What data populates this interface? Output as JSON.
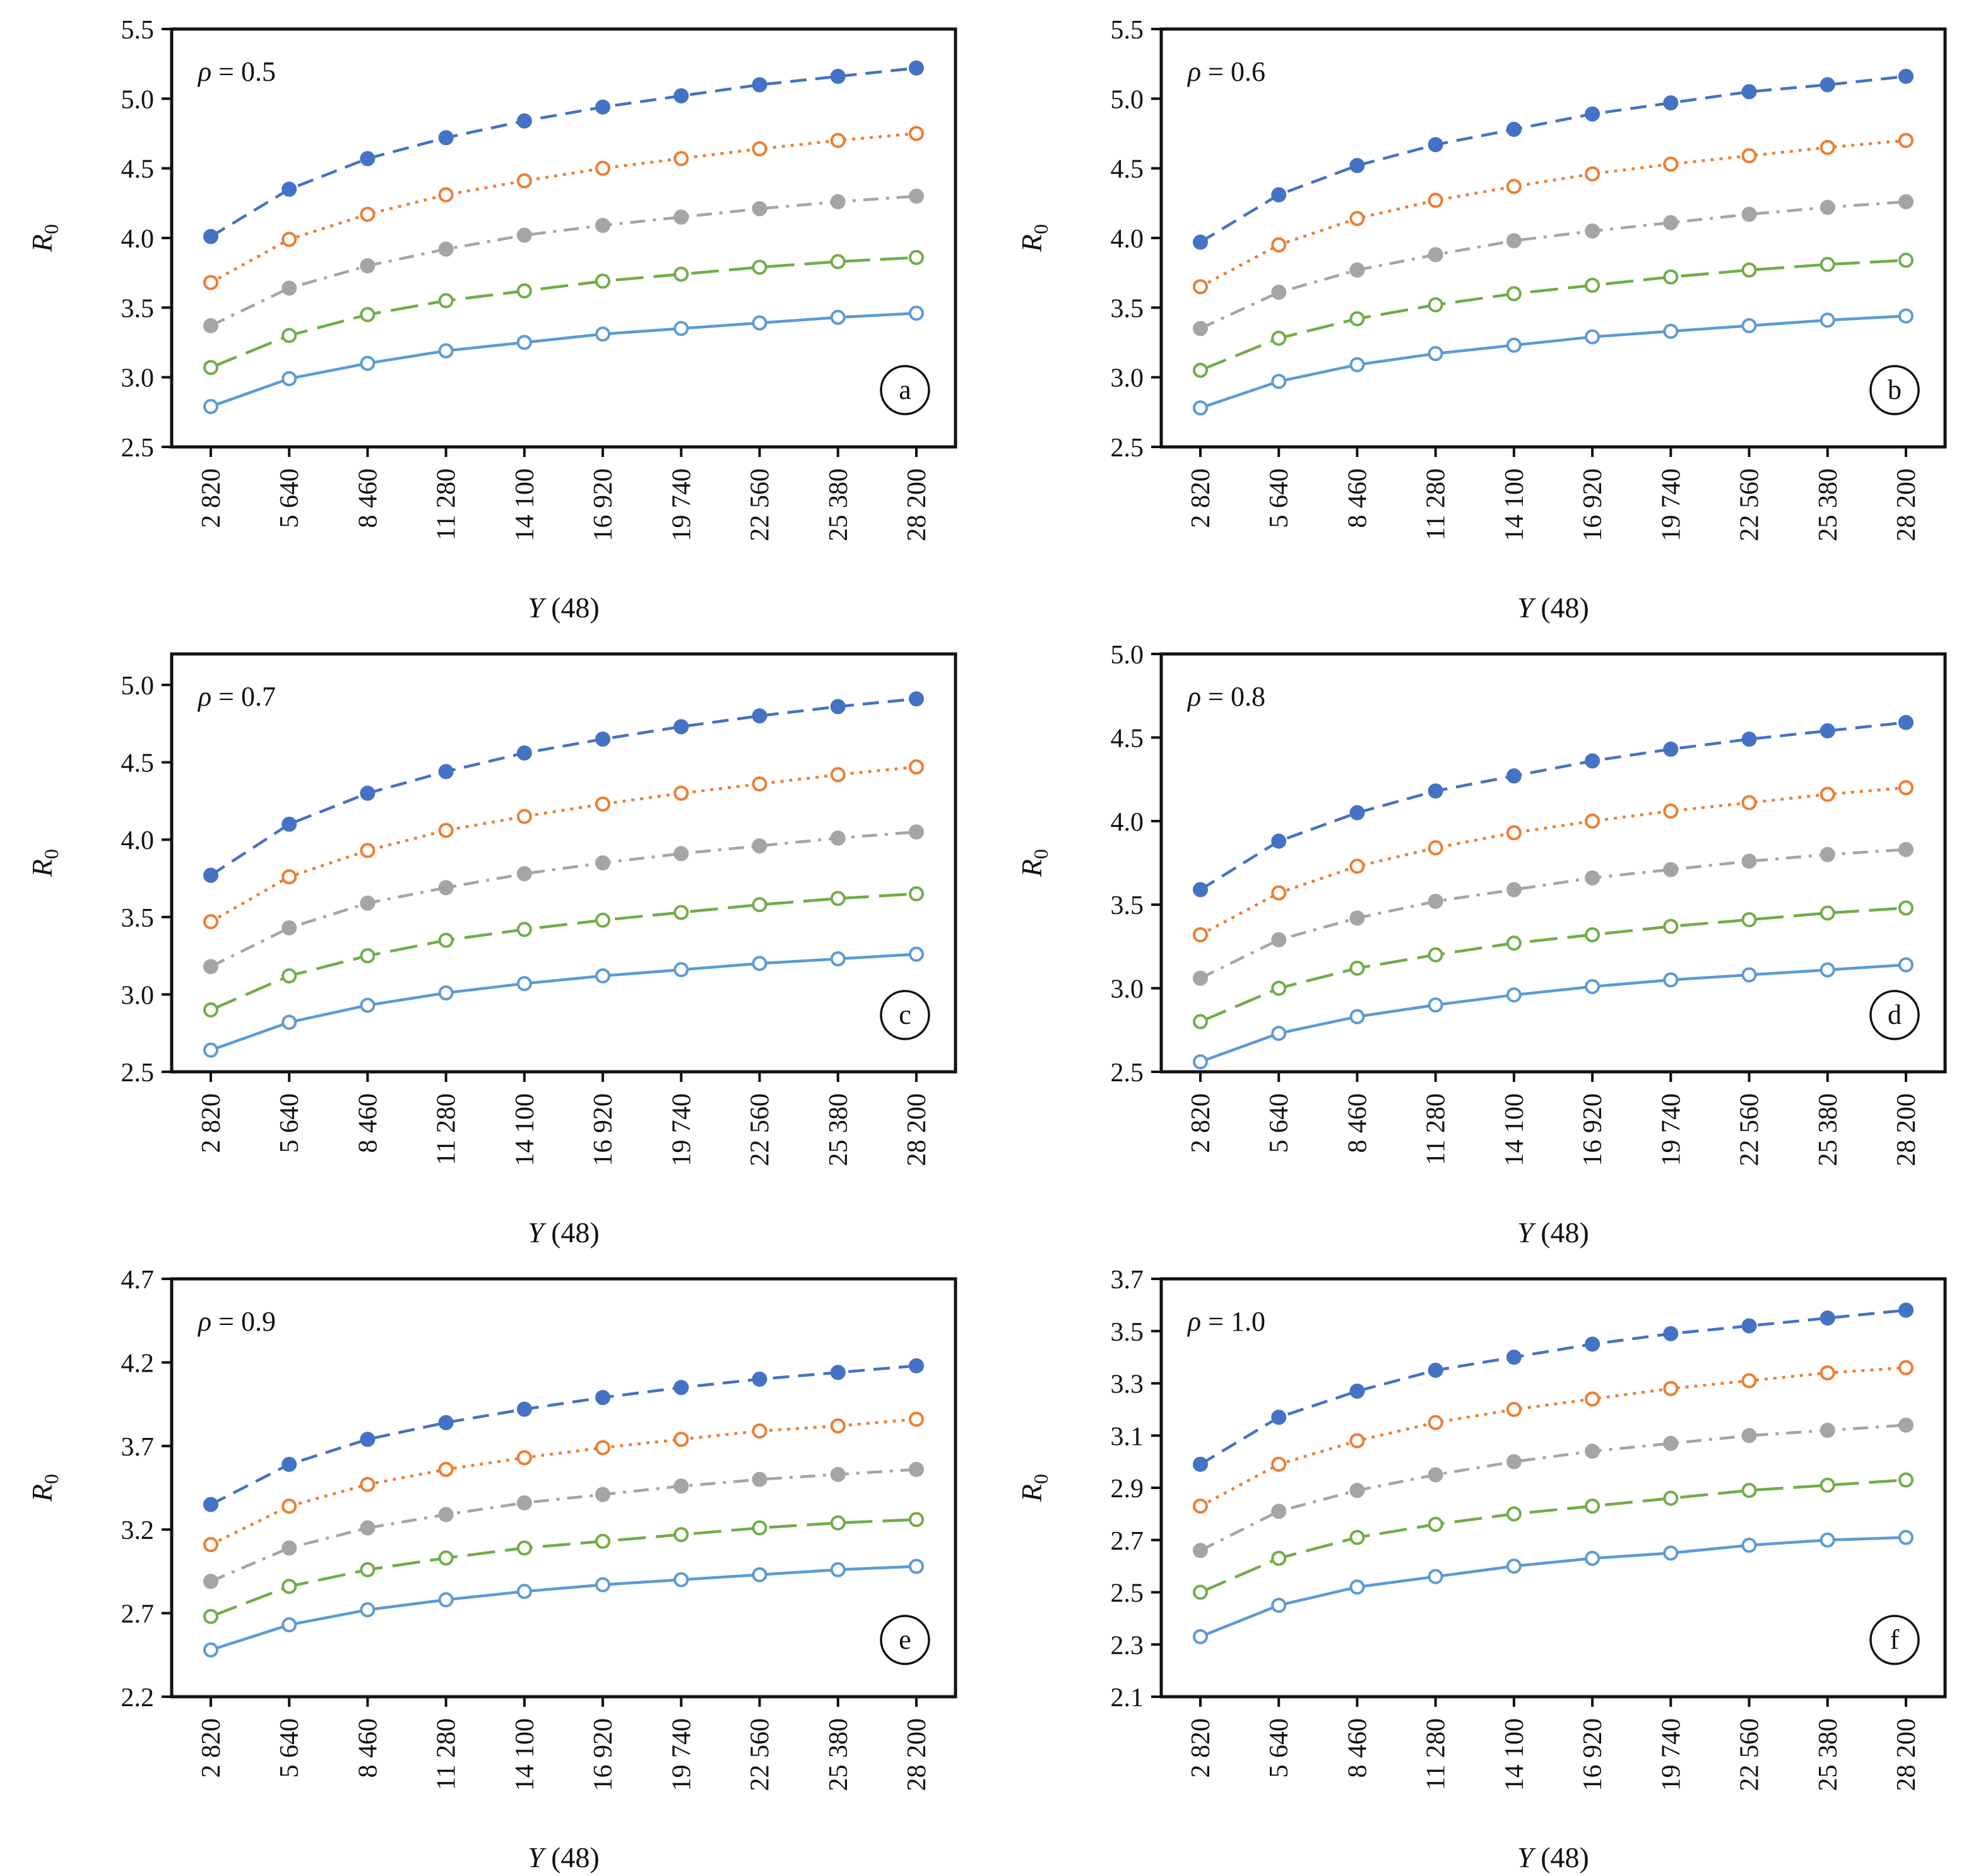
{
  "chart_data": [
    {
      "type": "line",
      "panel_label": "a",
      "annotation": "ρ = 0.5",
      "xlabel": "Y (48)",
      "ylabel": "R0",
      "categories": [
        "2 820",
        "5 640",
        "8 460",
        "11 280",
        "14 100",
        "16 920",
        "19 740",
        "22 560",
        "25 380",
        "28 200"
      ],
      "ylim": [
        2.5,
        5.5
      ],
      "yticks": [
        "2.5",
        "3.0",
        "3.5",
        "4.0",
        "4.5",
        "5.0",
        "5.5"
      ],
      "grid": false,
      "legend": "none",
      "series": [
        {
          "style": "dashed",
          "marker": "filled",
          "color": "#4472c4",
          "values": [
            4.01,
            4.35,
            4.57,
            4.72,
            4.84,
            4.94,
            5.02,
            5.1,
            5.16,
            5.22
          ]
        },
        {
          "style": "dotted",
          "marker": "open",
          "color": "#ed7d31",
          "values": [
            3.68,
            3.99,
            4.17,
            4.31,
            4.41,
            4.5,
            4.57,
            4.64,
            4.7,
            4.75
          ]
        },
        {
          "style": "dash-dot",
          "marker": "filled",
          "color": "#a5a5a5",
          "values": [
            3.37,
            3.64,
            3.8,
            3.92,
            4.02,
            4.09,
            4.15,
            4.21,
            4.26,
            4.3
          ]
        },
        {
          "style": "long-dash",
          "marker": "open",
          "color": "#70ad47",
          "values": [
            3.07,
            3.3,
            3.45,
            3.55,
            3.62,
            3.69,
            3.74,
            3.79,
            3.83,
            3.86
          ]
        },
        {
          "style": "solid",
          "marker": "open",
          "color": "#5b9bd5",
          "values": [
            2.79,
            2.99,
            3.1,
            3.19,
            3.25,
            3.31,
            3.35,
            3.39,
            3.43,
            3.46
          ]
        }
      ]
    },
    {
      "type": "line",
      "panel_label": "b",
      "annotation": "ρ = 0.6",
      "xlabel": "Y (48)",
      "ylabel": "R0",
      "categories": [
        "2 820",
        "5 640",
        "8 460",
        "11 280",
        "14 100",
        "16 920",
        "19 740",
        "22 560",
        "25 380",
        "28 200"
      ],
      "ylim": [
        2.5,
        5.5
      ],
      "yticks": [
        "2.5",
        "3.0",
        "3.5",
        "4.0",
        "4.5",
        "5.0",
        "5.5"
      ],
      "grid": false,
      "legend": "none",
      "series": [
        {
          "style": "dashed",
          "marker": "filled",
          "color": "#4472c4",
          "values": [
            3.97,
            4.31,
            4.52,
            4.67,
            4.78,
            4.89,
            4.97,
            5.05,
            5.1,
            5.16
          ]
        },
        {
          "style": "dotted",
          "marker": "open",
          "color": "#ed7d31",
          "values": [
            3.65,
            3.95,
            4.14,
            4.27,
            4.37,
            4.46,
            4.53,
            4.59,
            4.65,
            4.7
          ]
        },
        {
          "style": "dash-dot",
          "marker": "filled",
          "color": "#a5a5a5",
          "values": [
            3.35,
            3.61,
            3.77,
            3.88,
            3.98,
            4.05,
            4.11,
            4.17,
            4.22,
            4.26
          ]
        },
        {
          "style": "long-dash",
          "marker": "open",
          "color": "#70ad47",
          "values": [
            3.05,
            3.28,
            3.42,
            3.52,
            3.6,
            3.66,
            3.72,
            3.77,
            3.81,
            3.84
          ]
        },
        {
          "style": "solid",
          "marker": "open",
          "color": "#5b9bd5",
          "values": [
            2.78,
            2.97,
            3.09,
            3.17,
            3.23,
            3.29,
            3.33,
            3.37,
            3.41,
            3.44
          ]
        }
      ]
    },
    {
      "type": "line",
      "panel_label": "c",
      "annotation": "ρ = 0.7",
      "xlabel": "Y (48)",
      "ylabel": "R0",
      "categories": [
        "2 820",
        "5 640",
        "8 460",
        "11 280",
        "14 100",
        "16 920",
        "19 740",
        "22 560",
        "25 380",
        "28 200"
      ],
      "ylim": [
        2.5,
        5.2
      ],
      "yticks": [
        "2.5",
        "3.0",
        "3.5",
        "4.0",
        "4.5",
        "5.0"
      ],
      "grid": false,
      "legend": "none",
      "series": [
        {
          "style": "dashed",
          "marker": "filled",
          "color": "#4472c4",
          "values": [
            3.77,
            4.1,
            4.3,
            4.44,
            4.56,
            4.65,
            4.73,
            4.8,
            4.86,
            4.91
          ]
        },
        {
          "style": "dotted",
          "marker": "open",
          "color": "#ed7d31",
          "values": [
            3.47,
            3.76,
            3.93,
            4.06,
            4.15,
            4.23,
            4.3,
            4.36,
            4.42,
            4.47
          ]
        },
        {
          "style": "dash-dot",
          "marker": "filled",
          "color": "#a5a5a5",
          "values": [
            3.18,
            3.43,
            3.59,
            3.69,
            3.78,
            3.85,
            3.91,
            3.96,
            4.01,
            4.05
          ]
        },
        {
          "style": "long-dash",
          "marker": "open",
          "color": "#70ad47",
          "values": [
            2.9,
            3.12,
            3.25,
            3.35,
            3.42,
            3.48,
            3.53,
            3.58,
            3.62,
            3.65
          ]
        },
        {
          "style": "solid",
          "marker": "open",
          "color": "#5b9bd5",
          "values": [
            2.64,
            2.82,
            2.93,
            3.01,
            3.07,
            3.12,
            3.16,
            3.2,
            3.23,
            3.26
          ]
        }
      ]
    },
    {
      "type": "line",
      "panel_label": "d",
      "annotation": "ρ = 0.8",
      "xlabel": "Y (48)",
      "ylabel": "R0",
      "categories": [
        "2 820",
        "5 640",
        "8 460",
        "11 280",
        "14 100",
        "16 920",
        "19 740",
        "22 560",
        "25 380",
        "28 200"
      ],
      "ylim": [
        2.5,
        5.0
      ],
      "yticks": [
        "2.5",
        "3.0",
        "3.5",
        "4.0",
        "4.5",
        "5.0"
      ],
      "grid": false,
      "legend": "none",
      "series": [
        {
          "style": "dashed",
          "marker": "filled",
          "color": "#4472c4",
          "values": [
            3.59,
            3.88,
            4.05,
            4.18,
            4.27,
            4.36,
            4.43,
            4.49,
            4.54,
            4.59
          ]
        },
        {
          "style": "dotted",
          "marker": "open",
          "color": "#ed7d31",
          "values": [
            3.32,
            3.57,
            3.73,
            3.84,
            3.93,
            4.0,
            4.06,
            4.11,
            4.16,
            4.2
          ]
        },
        {
          "style": "dash-dot",
          "marker": "filled",
          "color": "#a5a5a5",
          "values": [
            3.06,
            3.29,
            3.42,
            3.52,
            3.59,
            3.66,
            3.71,
            3.76,
            3.8,
            3.83
          ]
        },
        {
          "style": "long-dash",
          "marker": "open",
          "color": "#70ad47",
          "values": [
            2.8,
            3.0,
            3.12,
            3.2,
            3.27,
            3.32,
            3.37,
            3.41,
            3.45,
            3.48
          ]
        },
        {
          "style": "solid",
          "marker": "open",
          "color": "#5b9bd5",
          "values": [
            2.56,
            2.73,
            2.83,
            2.9,
            2.96,
            3.01,
            3.05,
            3.08,
            3.11,
            3.14
          ]
        }
      ]
    },
    {
      "type": "line",
      "panel_label": "e",
      "annotation": "ρ = 0.9",
      "xlabel": "Y (48)",
      "ylabel": "R0",
      "categories": [
        "2 820",
        "5 640",
        "8 460",
        "11 280",
        "14 100",
        "16 920",
        "19 740",
        "22 560",
        "25 380",
        "28 200"
      ],
      "ylim": [
        2.2,
        4.7
      ],
      "yticks": [
        "2.2",
        "2.7",
        "3.2",
        "3.7",
        "4.2",
        "4.7"
      ],
      "grid": false,
      "legend": "none",
      "series": [
        {
          "style": "dashed",
          "marker": "filled",
          "color": "#4472c4",
          "values": [
            3.35,
            3.59,
            3.74,
            3.84,
            3.92,
            3.99,
            4.05,
            4.1,
            4.14,
            4.18
          ]
        },
        {
          "style": "dotted",
          "marker": "open",
          "color": "#ed7d31",
          "values": [
            3.11,
            3.34,
            3.47,
            3.56,
            3.63,
            3.69,
            3.74,
            3.79,
            3.82,
            3.86
          ]
        },
        {
          "style": "dash-dot",
          "marker": "filled",
          "color": "#a5a5a5",
          "values": [
            2.89,
            3.09,
            3.21,
            3.29,
            3.36,
            3.41,
            3.46,
            3.5,
            3.53,
            3.56
          ]
        },
        {
          "style": "long-dash",
          "marker": "open",
          "color": "#70ad47",
          "values": [
            2.68,
            2.86,
            2.96,
            3.03,
            3.09,
            3.13,
            3.17,
            3.21,
            3.24,
            3.26
          ]
        },
        {
          "style": "solid",
          "marker": "open",
          "color": "#5b9bd5",
          "values": [
            2.48,
            2.63,
            2.72,
            2.78,
            2.83,
            2.87,
            2.9,
            2.93,
            2.96,
            2.98
          ]
        }
      ]
    },
    {
      "type": "line",
      "panel_label": "f",
      "annotation": "ρ = 1.0",
      "xlabel": "Y (48)",
      "ylabel": "R0",
      "categories": [
        "2 820",
        "5 640",
        "8 460",
        "11 280",
        "14 100",
        "16 920",
        "19 740",
        "22 560",
        "25 380",
        "28 200"
      ],
      "ylim": [
        2.1,
        3.7
      ],
      "yticks": [
        "2.1",
        "2.3",
        "2.5",
        "2.7",
        "2.9",
        "3.1",
        "3.3",
        "3.5",
        "3.7"
      ],
      "grid": false,
      "legend": "none",
      "series": [
        {
          "style": "dashed",
          "marker": "filled",
          "color": "#4472c4",
          "values": [
            2.99,
            3.17,
            3.27,
            3.35,
            3.4,
            3.45,
            3.49,
            3.52,
            3.55,
            3.58
          ]
        },
        {
          "style": "dotted",
          "marker": "open",
          "color": "#ed7d31",
          "values": [
            2.83,
            2.99,
            3.08,
            3.15,
            3.2,
            3.24,
            3.28,
            3.31,
            3.34,
            3.36
          ]
        },
        {
          "style": "dash-dot",
          "marker": "filled",
          "color": "#a5a5a5",
          "values": [
            2.66,
            2.81,
            2.89,
            2.95,
            3.0,
            3.04,
            3.07,
            3.1,
            3.12,
            3.14
          ]
        },
        {
          "style": "long-dash",
          "marker": "open",
          "color": "#70ad47",
          "values": [
            2.5,
            2.63,
            2.71,
            2.76,
            2.8,
            2.83,
            2.86,
            2.89,
            2.91,
            2.93
          ]
        },
        {
          "style": "solid",
          "marker": "open",
          "color": "#5b9bd5",
          "values": [
            2.33,
            2.45,
            2.52,
            2.56,
            2.6,
            2.63,
            2.65,
            2.68,
            2.7,
            2.71
          ]
        }
      ]
    }
  ]
}
